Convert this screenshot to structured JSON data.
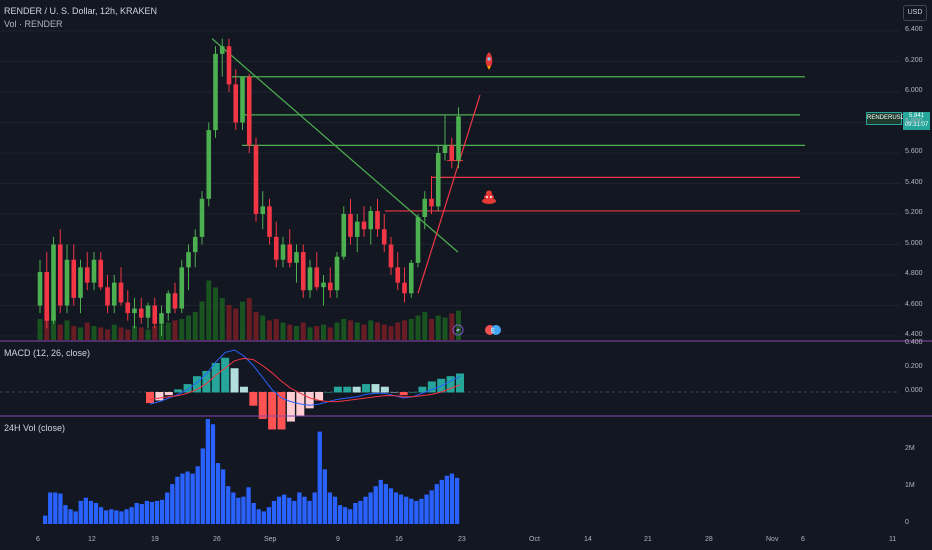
{
  "header": {
    "symbol_line": "RENDER / U. S. Dollar, 12h, KRAKEN",
    "volume_label": "Vol · RENDER",
    "currency": "USD"
  },
  "price_tag": {
    "symbol": "RENDERUSD",
    "price": "5.841",
    "countdown": "09:31:07"
  },
  "panes": {
    "macd_label": "MACD (12, 26, close)",
    "vol24_label": "24H Vol (close)"
  },
  "axis": {
    "price_ticks": [
      "6.400",
      "6.200",
      "6.000",
      "5.800",
      "5.600",
      "5.400",
      "5.200",
      "5.000",
      "4.800",
      "4.600",
      "4.400"
    ],
    "macd_ticks": [
      "0.400",
      "0.200",
      "0.000"
    ],
    "vol_ticks": [
      "2M",
      "1M",
      "0"
    ],
    "time_ticks": [
      "6",
      "12",
      "19",
      "26",
      "Sep",
      "9",
      "16",
      "23",
      "Oct",
      "14",
      "21",
      "28",
      "Nov",
      "6",
      "11"
    ]
  },
  "colors": {
    "background": "#131722",
    "up": "#4caf50",
    "down": "#f23645",
    "green_line": "#4caf50",
    "red_line": "#f23645",
    "macd_line": "#2962ff",
    "signal_line": "#f23645",
    "vol24_bar": "#2962ff",
    "separator": "#8e44ad"
  },
  "icons": [
    "rocket-icon",
    "poop-icon",
    "lightning-icon",
    "earnings-icon"
  ],
  "chart_data": {
    "type": "candlestick",
    "ylim": [
      4.4,
      6.4
    ],
    "candles": [
      [
        4.6,
        4.9,
        4.55,
        4.82
      ],
      [
        4.82,
        4.95,
        4.45,
        4.5
      ],
      [
        4.5,
        5.05,
        4.48,
        5.0
      ],
      [
        5.0,
        5.1,
        4.55,
        4.6
      ],
      [
        4.6,
        5.0,
        4.55,
        4.9
      ],
      [
        4.9,
        5.0,
        4.6,
        4.65
      ],
      [
        4.65,
        4.9,
        4.55,
        4.85
      ],
      [
        4.85,
        4.95,
        4.7,
        4.75
      ],
      [
        4.75,
        4.95,
        4.7,
        4.9
      ],
      [
        4.9,
        4.95,
        4.7,
        4.72
      ],
      [
        4.72,
        4.8,
        4.55,
        4.6
      ],
      [
        4.6,
        4.8,
        4.55,
        4.75
      ],
      [
        4.75,
        4.85,
        4.6,
        4.62
      ],
      [
        4.62,
        4.7,
        4.5,
        4.55
      ],
      [
        4.55,
        4.65,
        4.45,
        4.58
      ],
      [
        4.58,
        4.65,
        4.48,
        4.52
      ],
      [
        4.52,
        4.62,
        4.45,
        4.6
      ],
      [
        4.6,
        4.65,
        4.45,
        4.48
      ],
      [
        4.48,
        4.6,
        4.4,
        4.55
      ],
      [
        4.55,
        4.7,
        4.5,
        4.68
      ],
      [
        4.68,
        4.75,
        4.55,
        4.58
      ],
      [
        4.58,
        4.9,
        4.55,
        4.85
      ],
      [
        4.85,
        5.0,
        4.7,
        4.95
      ],
      [
        4.95,
        5.1,
        4.85,
        5.05
      ],
      [
        5.05,
        5.35,
        5.0,
        5.3
      ],
      [
        5.3,
        5.8,
        5.25,
        5.75
      ],
      [
        5.75,
        6.3,
        5.7,
        6.25
      ],
      [
        6.25,
        6.35,
        6.1,
        6.3
      ],
      [
        6.3,
        6.35,
        6.0,
        6.05
      ],
      [
        6.05,
        6.15,
        5.75,
        5.8
      ],
      [
        5.8,
        6.1,
        5.75,
        6.1
      ],
      [
        6.1,
        6.12,
        5.6,
        5.65
      ],
      [
        5.65,
        5.7,
        5.15,
        5.2
      ],
      [
        5.2,
        5.35,
        5.1,
        5.25
      ],
      [
        5.25,
        5.3,
        5.0,
        5.05
      ],
      [
        5.05,
        5.15,
        4.85,
        4.9
      ],
      [
        4.9,
        5.05,
        4.85,
        5.0
      ],
      [
        5.0,
        5.1,
        4.85,
        4.88
      ],
      [
        4.88,
        5.0,
        4.75,
        4.95
      ],
      [
        4.95,
        5.0,
        4.65,
        4.7
      ],
      [
        4.7,
        4.9,
        4.65,
        4.85
      ],
      [
        4.85,
        4.95,
        4.7,
        4.72
      ],
      [
        4.72,
        4.8,
        4.6,
        4.75
      ],
      [
        4.75,
        4.85,
        4.65,
        4.7
      ],
      [
        4.7,
        4.95,
        4.65,
        4.92
      ],
      [
        4.92,
        5.25,
        4.9,
        5.2
      ],
      [
        5.2,
        5.3,
        5.0,
        5.05
      ],
      [
        5.05,
        5.2,
        4.95,
        5.15
      ],
      [
        5.15,
        5.25,
        5.05,
        5.1
      ],
      [
        5.1,
        5.25,
        5.0,
        5.22
      ],
      [
        5.22,
        5.3,
        5.05,
        5.1
      ],
      [
        5.1,
        5.2,
        4.95,
        5.0
      ],
      [
        5.0,
        5.05,
        4.8,
        4.85
      ],
      [
        4.85,
        4.95,
        4.7,
        4.75
      ],
      [
        4.75,
        4.85,
        4.62,
        4.68
      ],
      [
        4.68,
        4.9,
        4.65,
        4.88
      ],
      [
        4.88,
        5.2,
        4.85,
        5.18
      ],
      [
        5.18,
        5.35,
        5.1,
        5.3
      ],
      [
        5.3,
        5.45,
        5.2,
        5.25
      ],
      [
        5.25,
        5.65,
        5.22,
        5.6
      ],
      [
        5.6,
        5.85,
        5.55,
        5.65
      ],
      [
        5.65,
        5.7,
        5.5,
        5.55
      ],
      [
        5.55,
        5.9,
        5.5,
        5.84
      ]
    ],
    "volume_relative": [
      0.3,
      0.42,
      0.35,
      0.22,
      0.28,
      0.2,
      0.18,
      0.25,
      0.2,
      0.18,
      0.15,
      0.22,
      0.18,
      0.15,
      0.2,
      0.18,
      0.15,
      0.2,
      0.22,
      0.25,
      0.28,
      0.3,
      0.35,
      0.4,
      0.55,
      0.85,
      0.75,
      0.6,
      0.5,
      0.45,
      0.55,
      0.6,
      0.4,
      0.35,
      0.28,
      0.3,
      0.25,
      0.22,
      0.2,
      0.25,
      0.18,
      0.2,
      0.22,
      0.18,
      0.25,
      0.3,
      0.28,
      0.25,
      0.22,
      0.28,
      0.25,
      0.22,
      0.2,
      0.25,
      0.28,
      0.3,
      0.35,
      0.4,
      0.3,
      0.35,
      0.32,
      0.38,
      0.42
    ],
    "macd": [
      -0.1,
      -0.08,
      -0.05,
      -0.02,
      0.02,
      0.08,
      0.15,
      0.25,
      0.33,
      0.35,
      0.3,
      0.22,
      0.12,
      0.02,
      -0.05,
      -0.08,
      -0.1,
      -0.11,
      -0.1,
      -0.08,
      -0.06,
      -0.05,
      -0.04,
      -0.02,
      -0.01,
      -0.01,
      -0.03,
      -0.05,
      -0.04,
      -0.01,
      0.02,
      0.05,
      0.09,
      0.13
    ],
    "signal": [
      -0.06,
      -0.05,
      -0.04,
      -0.03,
      -0.01,
      0.02,
      0.07,
      0.14,
      0.2,
      0.26,
      0.28,
      0.27,
      0.22,
      0.16,
      0.09,
      0.03,
      -0.01,
      -0.05,
      -0.07,
      -0.08,
      -0.08,
      -0.07,
      -0.06,
      -0.05,
      -0.04,
      -0.03,
      -0.03,
      -0.04,
      -0.04,
      -0.03,
      -0.02,
      0.0,
      0.03,
      0.06
    ],
    "vol24_relative": [
      0.08,
      0.3,
      0.3,
      0.29,
      0.18,
      0.14,
      0.12,
      0.22,
      0.25,
      0.22,
      0.2,
      0.16,
      0.13,
      0.14,
      0.13,
      0.12,
      0.14,
      0.16,
      0.2,
      0.19,
      0.22,
      0.21,
      0.22,
      0.23,
      0.3,
      0.38,
      0.45,
      0.48,
      0.5,
      0.48,
      0.55,
      0.72,
      1.0,
      0.95,
      0.58,
      0.52,
      0.36,
      0.3,
      0.25,
      0.26,
      0.35,
      0.2,
      0.14,
      0.12,
      0.16,
      0.22,
      0.26,
      0.28,
      0.25,
      0.22,
      0.3,
      0.26,
      0.22,
      0.3,
      0.88,
      0.52,
      0.3,
      0.26,
      0.18,
      0.16,
      0.14,
      0.2,
      0.22,
      0.26,
      0.3,
      0.36,
      0.42,
      0.38,
      0.34,
      0.3,
      0.28,
      0.26,
      0.24,
      0.22,
      0.24,
      0.28,
      0.32,
      0.38,
      0.42,
      0.46,
      0.48,
      0.44
    ],
    "horizontal_levels": [
      {
        "price": 6.1,
        "color": "green"
      },
      {
        "price": 5.85,
        "color": "green"
      },
      {
        "price": 5.65,
        "color": "green"
      },
      {
        "price": 5.44,
        "color": "red"
      },
      {
        "price": 5.22,
        "color": "red"
      }
    ]
  }
}
